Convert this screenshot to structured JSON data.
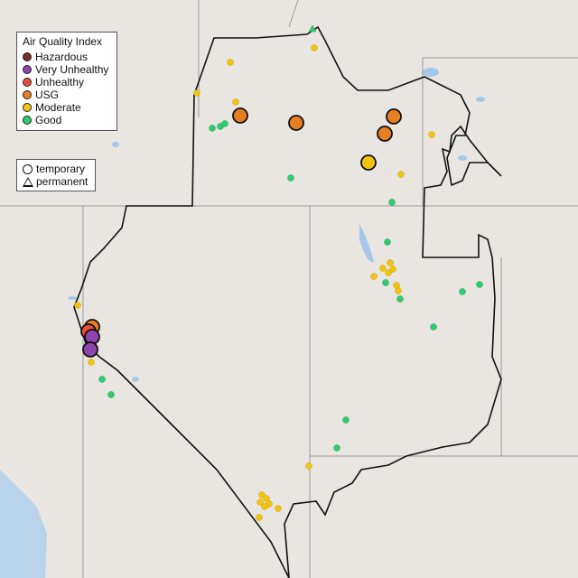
{
  "map": {
    "legend_aqi": {
      "title": "Air Quality Index",
      "items": [
        {
          "label": "Hazardous",
          "color": "#7e2b2b"
        },
        {
          "label": "Very Unhealthy",
          "color": "#8e44ad"
        },
        {
          "label": "Unhealthy",
          "color": "#e74c3c"
        },
        {
          "label": "USG",
          "color": "#e67e22"
        },
        {
          "label": "Moderate",
          "color": "#f1c40f"
        },
        {
          "label": "Good",
          "color": "#2ecc71"
        }
      ]
    },
    "legend_type": {
      "items": [
        {
          "label": "temporary",
          "shape": "circle"
        },
        {
          "label": "permanent",
          "shape": "triangle"
        }
      ]
    },
    "colors": {
      "background": "#e9e6e2",
      "water": "#a6c8e8",
      "boundary": "#111111",
      "state_lines": "#9a9a9a"
    }
  }
}
